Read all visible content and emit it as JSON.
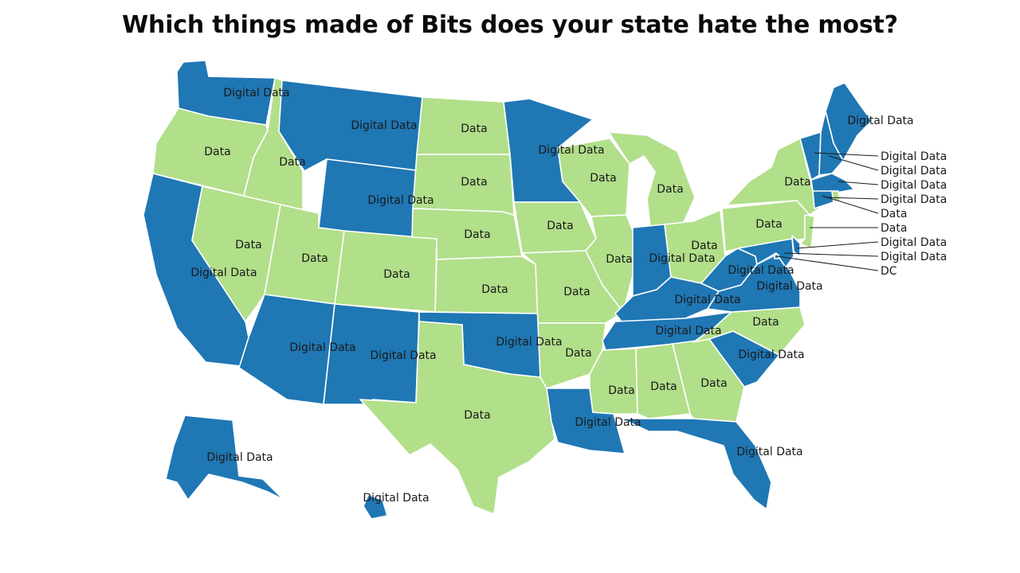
{
  "title": "Which things made of Bits does your state hate the most?",
  "colors": {
    "digital_data": "#1f77b4",
    "data": "#b2df8a"
  },
  "states": [
    {
      "id": "WA",
      "category": "digital_data",
      "label": "Digital Data"
    },
    {
      "id": "OR",
      "category": "data",
      "label": "Data"
    },
    {
      "id": "CA",
      "category": "digital_data",
      "label": "Digital Data"
    },
    {
      "id": "ID",
      "category": "data",
      "label": "Data"
    },
    {
      "id": "NV",
      "category": "data",
      "label": "Data"
    },
    {
      "id": "MT",
      "category": "digital_data",
      "label": "Digital Data"
    },
    {
      "id": "WY",
      "category": "digital_data",
      "label": "Digital Data"
    },
    {
      "id": "UT",
      "category": "data",
      "label": "Data"
    },
    {
      "id": "AZ",
      "category": "digital_data",
      "label": "Digital Data"
    },
    {
      "id": "CO",
      "category": "data",
      "label": "Data"
    },
    {
      "id": "NM",
      "category": "digital_data",
      "label": "Digital Data"
    },
    {
      "id": "ND",
      "category": "data",
      "label": "Data"
    },
    {
      "id": "SD",
      "category": "data",
      "label": "Data"
    },
    {
      "id": "NE",
      "category": "data",
      "label": "Data"
    },
    {
      "id": "KS",
      "category": "data",
      "label": "Data"
    },
    {
      "id": "OK",
      "category": "digital_data",
      "label": "Digital Data"
    },
    {
      "id": "TX",
      "category": "data",
      "label": "Data"
    },
    {
      "id": "MN",
      "category": "digital_data",
      "label": "Digital Data"
    },
    {
      "id": "IA",
      "category": "data",
      "label": "Data"
    },
    {
      "id": "MO",
      "category": "data",
      "label": "Data"
    },
    {
      "id": "AR",
      "category": "data",
      "label": "Data"
    },
    {
      "id": "LA",
      "category": "digital_data",
      "label": "Digital Data"
    },
    {
      "id": "WI",
      "category": "data",
      "label": "Data"
    },
    {
      "id": "IL",
      "category": "data",
      "label": "Data"
    },
    {
      "id": "MI",
      "category": "data",
      "label": "Data"
    },
    {
      "id": "IN",
      "category": "digital_data",
      "label": "Digital Data"
    },
    {
      "id": "OH",
      "category": "data",
      "label": "Data"
    },
    {
      "id": "KY",
      "category": "digital_data",
      "label": "Digital Data"
    },
    {
      "id": "TN",
      "category": "digital_data",
      "label": "Digital Data"
    },
    {
      "id": "MS",
      "category": "data",
      "label": "Data"
    },
    {
      "id": "AL",
      "category": "data",
      "label": "Data"
    },
    {
      "id": "GA",
      "category": "data",
      "label": "Data"
    },
    {
      "id": "FL",
      "category": "digital_data",
      "label": "Digital Data"
    },
    {
      "id": "SC",
      "category": "digital_data",
      "label": "Digital Data"
    },
    {
      "id": "NC",
      "category": "data",
      "label": "Data"
    },
    {
      "id": "VA",
      "category": "digital_data",
      "label": "Digital Data"
    },
    {
      "id": "WV",
      "category": "digital_data",
      "label": "Digital Data"
    },
    {
      "id": "PA",
      "category": "data",
      "label": "Data"
    },
    {
      "id": "NY",
      "category": "data",
      "label": "Data"
    },
    {
      "id": "ME",
      "category": "digital_data",
      "label": "Digital Data"
    },
    {
      "id": "AK",
      "category": "digital_data",
      "label": "Digital Data"
    },
    {
      "id": "HI",
      "category": "digital_data",
      "label": "Digital Data"
    }
  ],
  "small_states": [
    {
      "id": "VT",
      "category": "digital_data",
      "label": "Digital Data"
    },
    {
      "id": "NH",
      "category": "digital_data",
      "label": "Digital Data"
    },
    {
      "id": "MA",
      "category": "digital_data",
      "label": "Digital Data"
    },
    {
      "id": "CT",
      "category": "digital_data",
      "label": "Digital Data"
    },
    {
      "id": "RI",
      "category": "data",
      "label": "Data"
    },
    {
      "id": "NJ",
      "category": "data",
      "label": "Data"
    },
    {
      "id": "DE",
      "category": "digital_data",
      "label": "Digital Data"
    },
    {
      "id": "MD",
      "category": "digital_data",
      "label": "Digital Data"
    },
    {
      "id": "DC",
      "category": "digital_data",
      "label": "DC"
    }
  ]
}
